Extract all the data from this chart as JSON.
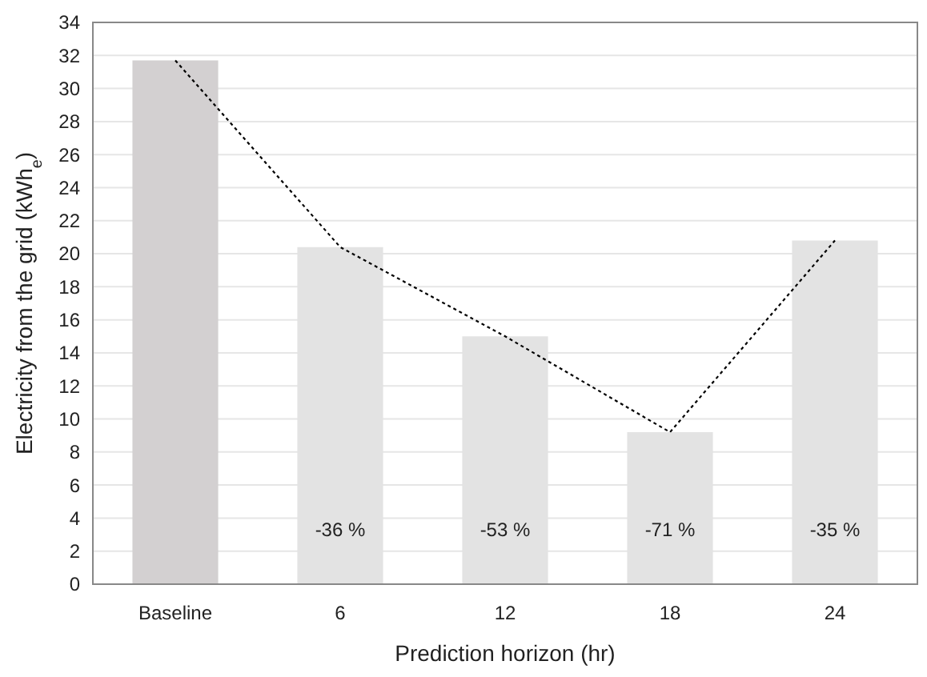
{
  "chart_data": {
    "type": "bar",
    "xlabel": "Prediction horizon (hr)",
    "ylabel": "Electricity from the grid (kWh$_{e}$)",
    "categories": [
      "Baseline",
      "6",
      "12",
      "18",
      "24"
    ],
    "series": [
      {
        "colors": [
          "#d3d0d1",
          "#e3e3e3",
          "#e3e3e3",
          "#e3e3e3",
          "#e3e3e3"
        ],
        "values": [
          31.7,
          20.4,
          15.0,
          9.2,
          20.8
        ]
      },
      {
        "type": "line",
        "color": "#000000",
        "line_style": "dotted",
        "marker": "none",
        "values": [
          31.7,
          20.4,
          15.0,
          9.2,
          20.8
        ]
      }
    ],
    "ylim": [
      0,
      34
    ],
    "yticks": [
      0,
      2,
      4,
      6,
      8,
      10,
      12,
      14,
      16,
      18,
      20,
      22,
      24,
      26,
      28,
      30,
      32,
      34
    ],
    "grid": "y",
    "annotations": [
      "-36 %",
      "-53 %",
      "-71 %",
      "-35 %"
    ]
  }
}
